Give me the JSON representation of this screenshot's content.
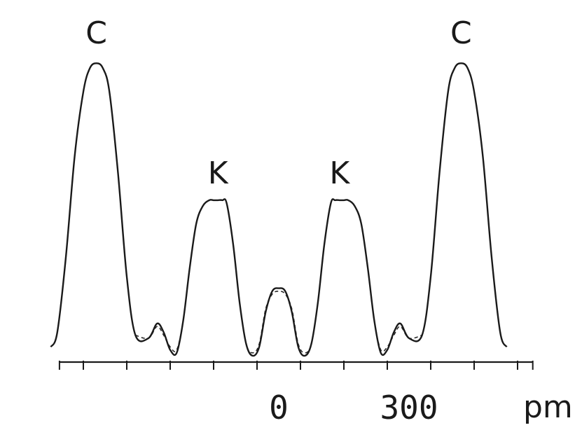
{
  "chart_data": {
    "type": "line",
    "xlabel": "pm",
    "xlim": [
      -505,
      585
    ],
    "ylim": [
      0,
      1
    ],
    "grid": false,
    "x_ticks": [
      -450,
      -350,
      -250,
      -150,
      -50,
      50,
      150,
      250,
      350,
      450,
      550
    ],
    "x_tick_labels": [
      {
        "x": 0,
        "label": "0"
      },
      {
        "x": 300,
        "label": "300"
      }
    ],
    "peak_labels": [
      {
        "x": -420,
        "label": "C"
      },
      {
        "x": -140,
        "label": "K"
      },
      {
        "x": 140,
        "label": "K"
      },
      {
        "x": 420,
        "label": "C"
      }
    ],
    "series": [
      {
        "style": "solid",
        "x": [
          -525,
          -510,
          -490,
          -470,
          -450,
          -435,
          -420,
          -405,
          -390,
          -370,
          -350,
          -330,
          -300,
          -280,
          -265,
          -250,
          -235,
          -220,
          -205,
          -190,
          -175,
          -160,
          -150,
          -140,
          -130,
          -120,
          -105,
          -90,
          -75,
          -60,
          -45,
          -30,
          -15,
          0,
          15,
          30,
          45,
          60,
          75,
          90,
          105,
          120,
          130,
          140,
          150,
          160,
          175,
          190,
          205,
          220,
          235,
          250,
          265,
          280,
          300,
          330,
          350,
          370,
          390,
          405,
          420,
          435,
          450,
          470,
          490,
          510,
          525
        ],
        "y": [
          0.03,
          0.08,
          0.34,
          0.68,
          0.9,
          0.98,
          0.997,
          0.98,
          0.9,
          0.62,
          0.27,
          0.07,
          0.06,
          0.11,
          0.08,
          0.02,
          0.01,
          0.12,
          0.3,
          0.45,
          0.51,
          0.53,
          0.53,
          0.53,
          0.53,
          0.52,
          0.38,
          0.18,
          0.04,
          0.0,
          0.03,
          0.15,
          0.22,
          0.23,
          0.22,
          0.15,
          0.03,
          0.0,
          0.04,
          0.18,
          0.38,
          0.52,
          0.53,
          0.53,
          0.53,
          0.53,
          0.51,
          0.45,
          0.3,
          0.12,
          0.01,
          0.02,
          0.08,
          0.11,
          0.06,
          0.07,
          0.27,
          0.62,
          0.9,
          0.98,
          0.997,
          0.98,
          0.9,
          0.68,
          0.34,
          0.08,
          0.03
        ]
      },
      {
        "style": "dashed",
        "x": [
          -330,
          -300,
          -280,
          -265,
          -250,
          -235,
          -220,
          -205,
          -190,
          -175,
          -160,
          -150,
          -140,
          -130,
          -120,
          -105,
          -90,
          -75,
          -60,
          -45,
          -30,
          -15,
          0,
          15,
          30,
          45,
          60,
          75,
          90,
          105,
          120,
          130,
          140,
          150,
          160,
          175,
          190,
          205,
          220,
          235,
          250,
          265,
          280,
          300,
          330
        ],
        "y": [
          0.07,
          0.06,
          0.1,
          0.07,
          0.03,
          0.02,
          0.12,
          0.3,
          0.45,
          0.51,
          0.53,
          0.53,
          0.53,
          0.53,
          0.52,
          0.38,
          0.18,
          0.04,
          0.01,
          0.04,
          0.16,
          0.21,
          0.22,
          0.21,
          0.16,
          0.04,
          0.01,
          0.04,
          0.18,
          0.38,
          0.52,
          0.53,
          0.53,
          0.53,
          0.53,
          0.51,
          0.45,
          0.3,
          0.12,
          0.02,
          0.03,
          0.07,
          0.1,
          0.06,
          0.07
        ]
      }
    ]
  }
}
